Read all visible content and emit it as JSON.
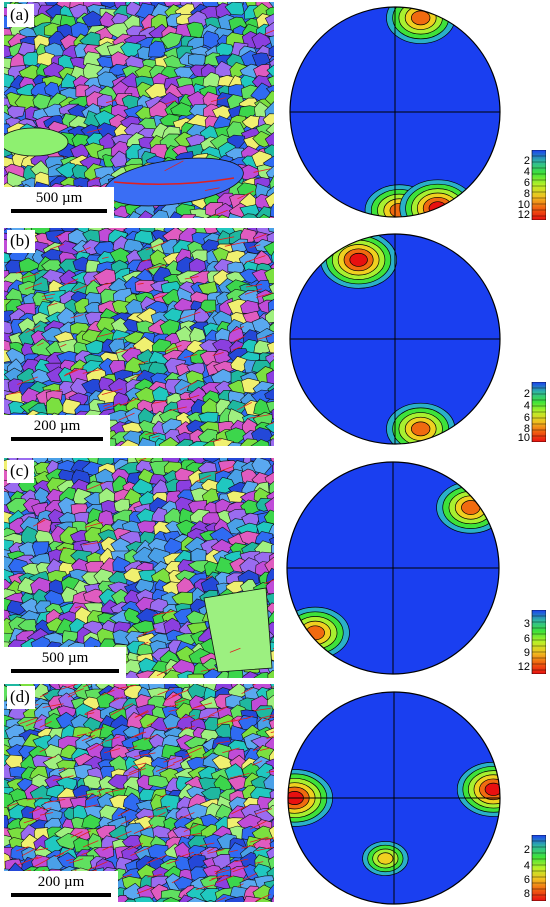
{
  "panels": [
    {
      "label": "(a)",
      "scale_text": "500 µm",
      "colorbar_ticks": [
        "2",
        "4",
        "6",
        "8",
        "10",
        "12"
      ]
    },
    {
      "label": "(b)",
      "scale_text": "200 µm",
      "colorbar_ticks": [
        "2",
        "4",
        "6",
        "8",
        "10"
      ]
    },
    {
      "label": "(c)",
      "scale_text": "500 µm",
      "colorbar_ticks": [
        "3",
        "6",
        "9",
        "12"
      ]
    },
    {
      "label": "(d)",
      "scale_text": "200 µm",
      "colorbar_ticks": [
        "2",
        "4",
        "6",
        "8"
      ]
    }
  ],
  "colors": {
    "ipf": [
      "#2f6bf2",
      "#4aa0e8",
      "#3cd64c",
      "#7be040",
      "#1fb8a0",
      "#8b3fe0",
      "#c04cd8",
      "#e05cc0",
      "#f0f070",
      "#5aa8f0",
      "#2448d8",
      "#60e060",
      "#20c8c0",
      "#a0f080",
      "#9a6cf0"
    ],
    "boundary_twin": "#e02020",
    "boundary_grain": "#111111",
    "pole_background": "#1a3ff0",
    "colorbar": [
      "#1a3ff0",
      "#30b8a0",
      "#3ee23a",
      "#b8f028",
      "#f0c020",
      "#f06010",
      "#e81010"
    ]
  }
}
